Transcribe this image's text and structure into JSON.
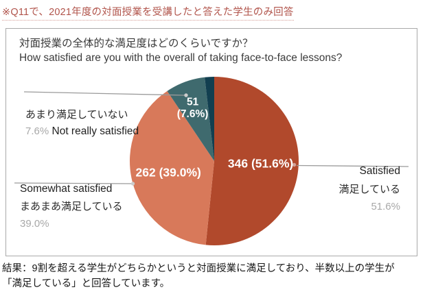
{
  "header": {
    "note": "※Q11で、2021年度の対面授業を受講したと答えた学生のみ回答"
  },
  "panel": {
    "title_ja": "対面授業の全体的な満足度はどのくらいですか？",
    "title_en": "How satisfied are you with the overall of taking face-to-face lessons?"
  },
  "chart_data": {
    "type": "pie",
    "title_ja": "対面授業の全体的な満足度はどのくらいですか？",
    "title_en": "How satisfied are you with the overall of taking face-to-face lessons?",
    "start_angle_deg": 0,
    "direction": "clockwise",
    "legend_position": "callouts",
    "segments": [
      {
        "name_en": "Satisfied",
        "name_ja": "満足している",
        "count": 346,
        "pct": 51.6,
        "color": "#b1492c",
        "label_lines": [
          "346 (51.6%)"
        ],
        "label_r": 0.55,
        "label_size": 17.5
      },
      {
        "name_en": "Somewhat satisfied",
        "name_ja": "まあまあ満足している",
        "count": 262,
        "pct": 39.0,
        "color": "#d8795a",
        "label_lines": [
          "262 (39.0%)"
        ],
        "label_r": 0.56,
        "label_size": 17.5
      },
      {
        "name_en": "Not really satisfied",
        "name_ja": "あまり満足していない",
        "count": 51,
        "pct": 7.6,
        "color": "#3f6a6e",
        "label_lines": [
          "51",
          "(7.6%)"
        ],
        "label_r": 0.74,
        "label_size": 15.5
      },
      {
        "name_en": "",
        "name_ja": "",
        "count": null,
        "pct": 1.8,
        "color": "#123f50",
        "label_lines": [],
        "label_r": null,
        "label_size": null
      }
    ]
  },
  "callouts": {
    "not_really": {
      "ja": "あまり満足していない",
      "pct": "7.6%",
      "en": " Not really satisfied"
    },
    "somewhat": {
      "en": "Somewhat satisfied",
      "ja": "まあまあ満足している",
      "pct": "39.0%"
    },
    "satisfied": {
      "en": "Satisfied",
      "ja": "満足している",
      "pct": "51.6%"
    }
  },
  "footer": {
    "result_line1": "結果：9割を超える学生がどちらかというと対面授業に満足しており、半数以上の学生が",
    "result_line2": "「満足している」と回答しています。"
  }
}
